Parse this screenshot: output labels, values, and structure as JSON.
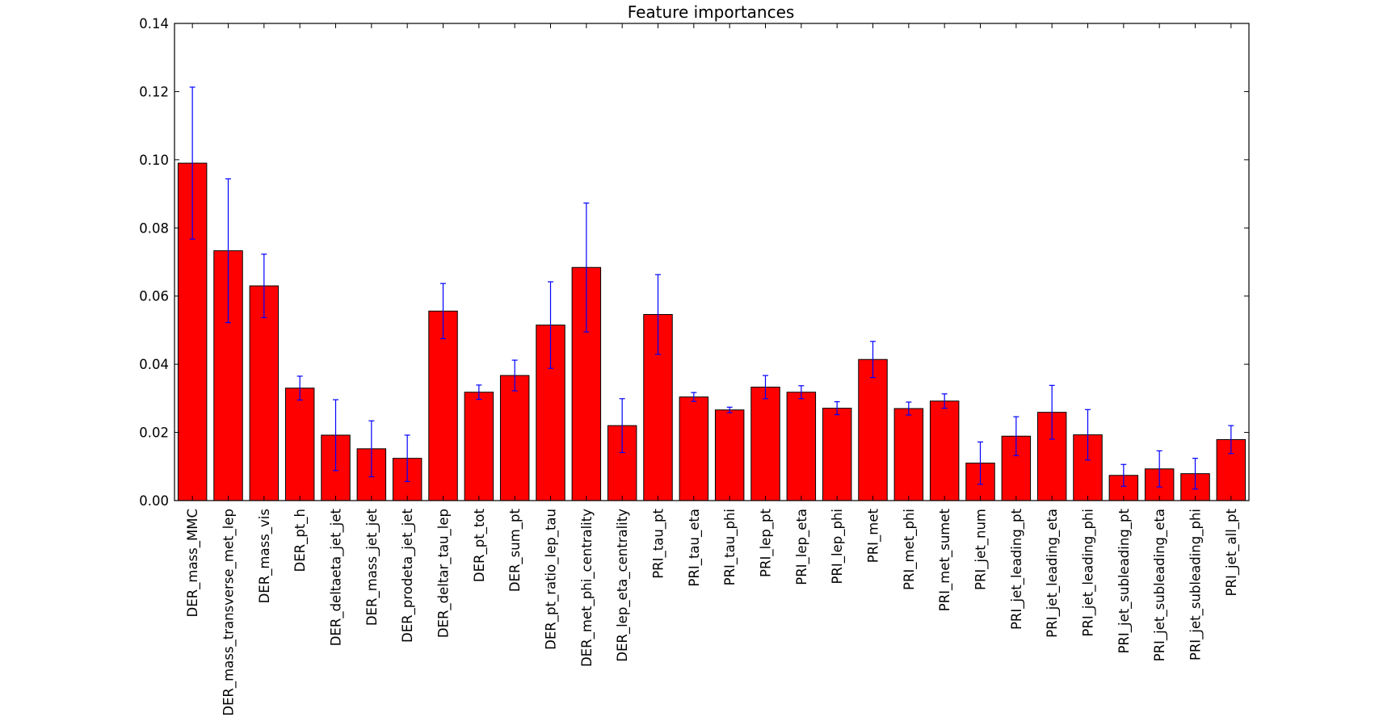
{
  "chart_data": {
    "type": "bar",
    "title": "Feature importances",
    "xlabel": "",
    "ylabel": "",
    "ylim": [
      0,
      0.14
    ],
    "yticks": [
      "0.00",
      "0.02",
      "0.04",
      "0.06",
      "0.08",
      "0.10",
      "0.12",
      "0.14"
    ],
    "grid": false,
    "legend": "none",
    "categories": [
      "DER_mass_MMC",
      "DER_mass_transverse_met_lep",
      "DER_mass_vis",
      "DER_pt_h",
      "DER_deltaeta_jet_jet",
      "DER_mass_jet_jet",
      "DER_prodeta_jet_jet",
      "DER_deltar_tau_lep",
      "DER_pt_tot",
      "DER_sum_pt",
      "DER_pt_ratio_lep_tau",
      "DER_met_phi_centrality",
      "DER_lep_eta_centrality",
      "PRI_tau_pt",
      "PRI_tau_eta",
      "PRI_tau_phi",
      "PRI_lep_pt",
      "PRI_lep_eta",
      "PRI_lep_phi",
      "PRI_met",
      "PRI_met_phi",
      "PRI_met_sumet",
      "PRI_jet_num",
      "PRI_jet_leading_pt",
      "PRI_jet_leading_eta",
      "PRI_jet_leading_phi",
      "PRI_jet_subleading_pt",
      "PRI_jet_subleading_eta",
      "PRI_jet_subleading_phi",
      "PRI_jet_all_pt"
    ],
    "values": [
      0.099,
      0.0733,
      0.063,
      0.033,
      0.0192,
      0.0152,
      0.0124,
      0.0556,
      0.0318,
      0.0367,
      0.0515,
      0.0684,
      0.022,
      0.0546,
      0.0304,
      0.0266,
      0.0333,
      0.0318,
      0.0271,
      0.0414,
      0.027,
      0.0292,
      0.011,
      0.0189,
      0.0259,
      0.0193,
      0.0074,
      0.0093,
      0.0079,
      0.0179
    ],
    "errors": [
      0.0223,
      0.0211,
      0.0093,
      0.0035,
      0.0104,
      0.0082,
      0.0068,
      0.0081,
      0.0021,
      0.0045,
      0.0127,
      0.0189,
      0.0079,
      0.0117,
      0.0013,
      0.0008,
      0.0034,
      0.0019,
      0.0019,
      0.0053,
      0.0019,
      0.0021,
      0.0062,
      0.0057,
      0.0079,
      0.0074,
      0.0032,
      0.0053,
      0.0045,
      0.0041
    ],
    "colors": {
      "bar": "#ff0000",
      "bar_edge": "#000000",
      "error_bar": "#0000ff",
      "axes": "#000000"
    }
  }
}
